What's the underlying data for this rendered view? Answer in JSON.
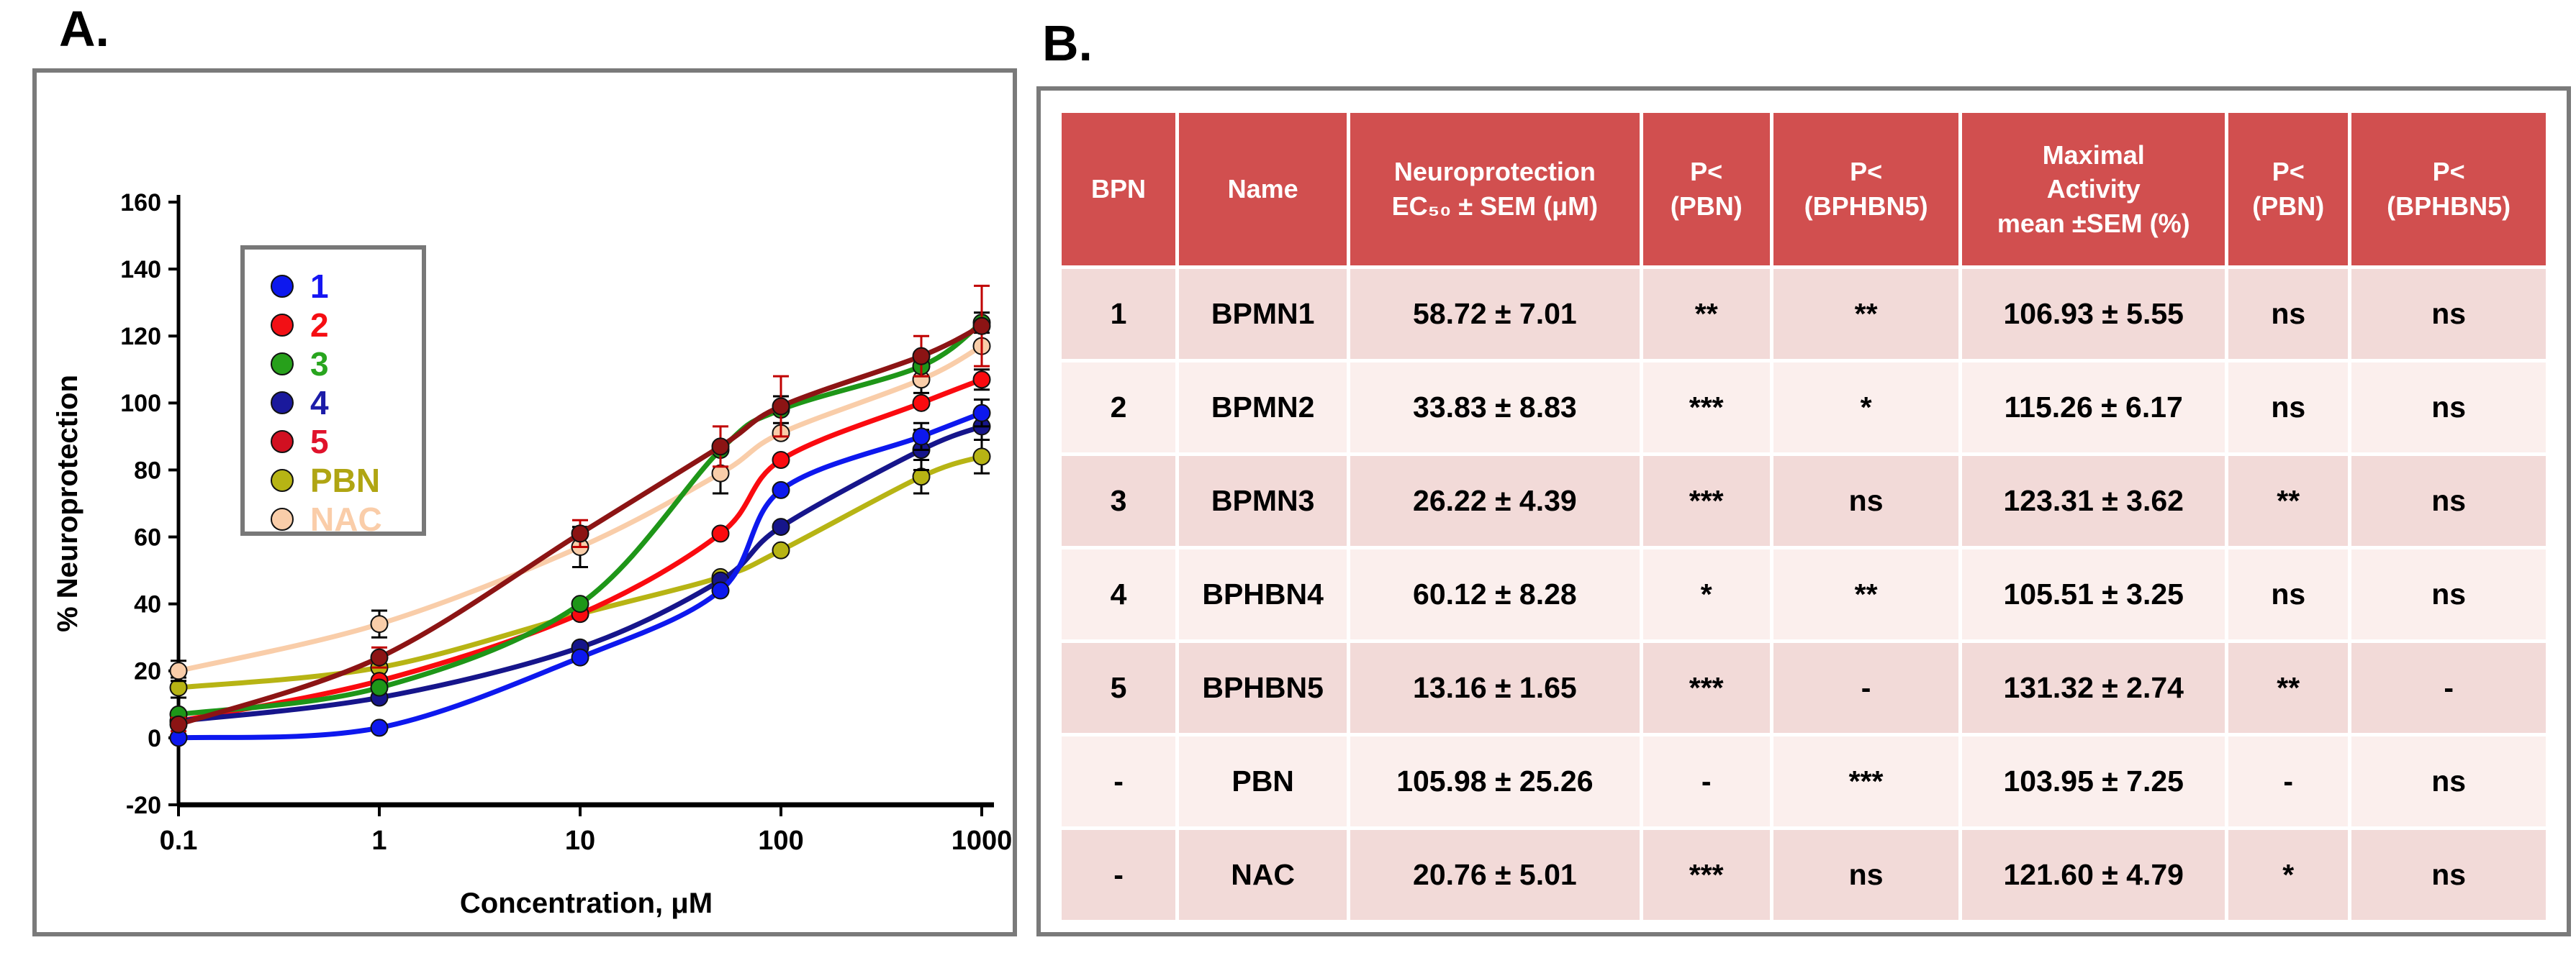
{
  "panel_a": {
    "label": "A."
  },
  "panel_b": {
    "label": "B.",
    "table": {
      "header": [
        "BPN",
        "Name",
        "Neuroprotection\nEC₅₀ ± SEM (μM)",
        "P<\n(PBN)",
        "P<\n(BPHBN5)",
        "Maximal\nActivity\nmean ±SEM (%)",
        "P<\n(PBN)",
        "P<\n(BPHBN5)"
      ],
      "rows": [
        [
          "1",
          "BPMN1",
          "58.72 ± 7.01",
          "**",
          "**",
          "106.93 ± 5.55",
          "ns",
          "ns"
        ],
        [
          "2",
          "BPMN2",
          "33.83 ± 8.83",
          "***",
          "*",
          "115.26 ± 6.17",
          "ns",
          "ns"
        ],
        [
          "3",
          "BPMN3",
          "26.22 ± 4.39",
          "***",
          "ns",
          "123.31 ± 3.62",
          "**",
          "ns"
        ],
        [
          "4",
          "BPHBN4",
          "60.12 ± 8.28",
          "*",
          "**",
          "105.51 ± 3.25",
          "ns",
          "ns"
        ],
        [
          "5",
          "BPHBN5",
          "13.16 ± 1.65",
          "***",
          "-",
          "131.32 ± 2.74",
          "**",
          "-"
        ],
        [
          "-",
          "PBN",
          "105.98 ± 25.26",
          "-",
          "***",
          "103.95 ± 7.25",
          "-",
          "ns"
        ],
        [
          "-",
          "NAC",
          "20.76 ± 5.01",
          "***",
          "ns",
          "121.60 ± 4.79",
          "*",
          "ns"
        ]
      ]
    }
  },
  "chart_data": {
    "type": "line",
    "title": "",
    "xlabel": "Concentration, μM",
    "ylabel": "% Neuroprotection",
    "x_scale": "log",
    "ylim": [
      -20,
      160
    ],
    "y_ticks": [
      160,
      140,
      120,
      100,
      80,
      60,
      40,
      20,
      0,
      -20
    ],
    "y_tick_labels": [
      "160",
      "140",
      "120",
      "100",
      "80",
      "60",
      "40",
      "20",
      "0",
      "-20"
    ],
    "x_ticks": [
      0.1,
      1,
      10,
      100,
      1000
    ],
    "x_tick_labels": [
      "0.1",
      "1",
      "10",
      "100",
      "1000"
    ],
    "x": [
      0.1,
      1,
      10,
      50,
      100,
      500,
      1000
    ],
    "legend_position": "upper-left",
    "grid": false,
    "series": [
      {
        "name": "1",
        "color": "#0d18ee",
        "legend_color": "#0d18ee",
        "label_color": "#1515f2",
        "values": [
          0,
          3,
          24,
          44,
          74,
          90,
          97
        ],
        "errors": [
          0,
          0,
          0,
          0,
          0,
          4,
          4
        ],
        "error_color": "#000000"
      },
      {
        "name": "2",
        "color": "#fa0a0f",
        "legend_color": "#f21015",
        "label_color": "#f50d12",
        "values": [
          5,
          17,
          37,
          61,
          83,
          100,
          107
        ],
        "errors": [
          0,
          0,
          0,
          0,
          0,
          0,
          3
        ],
        "error_color": "#000000"
      },
      {
        "name": "3",
        "color": "#1e9618",
        "legend_color": "#27a01b",
        "label_color": "#28a51e",
        "values": [
          7,
          15,
          40,
          86,
          98,
          111,
          124
        ],
        "errors": [
          0,
          0,
          0,
          0,
          4,
          3,
          3
        ],
        "error_color": "#000000"
      },
      {
        "name": "4",
        "color": "#16158b",
        "legend_color": "#1a199c",
        "label_color": "#1c1ca8",
        "values": [
          5,
          12,
          27,
          47,
          63,
          86,
          93
        ],
        "errors": [
          0,
          0,
          0,
          0,
          0,
          6,
          4
        ],
        "error_color": "#000000"
      },
      {
        "name": "5",
        "color": "#8c1414",
        "legend_color": "#d11021",
        "label_color": "#e0122b",
        "values": [
          4,
          24,
          61,
          87,
          99,
          114,
          123
        ],
        "errors": [
          2,
          3,
          4,
          6,
          9,
          6,
          12
        ],
        "error_color": "#c00000"
      },
      {
        "name": "PBN",
        "color": "#b7b414",
        "legend_color": "#b7b414",
        "label_color": "#b0a513",
        "values": [
          15,
          21,
          37,
          48,
          56,
          78,
          84
        ],
        "errors": [
          3,
          0,
          0,
          0,
          0,
          5,
          5
        ],
        "error_color": "#000000"
      },
      {
        "name": "NAC",
        "color": "#f9cda9",
        "legend_color": "#f9cda9",
        "label_color": "#facda9",
        "values": [
          20,
          34,
          57,
          79,
          91,
          107,
          117
        ],
        "errors": [
          3,
          4,
          6,
          6,
          0,
          4,
          0
        ],
        "error_color": "#000000"
      }
    ],
    "draw_order": [
      5,
      6,
      1,
      3,
      2,
      0,
      4
    ]
  },
  "colors": {
    "panel_border": "#7a7a7a",
    "axis": "#000000",
    "table_header_bg": "#d14f4f",
    "table_row_dark": "#f2dad8",
    "table_row_light": "#fbefed"
  }
}
